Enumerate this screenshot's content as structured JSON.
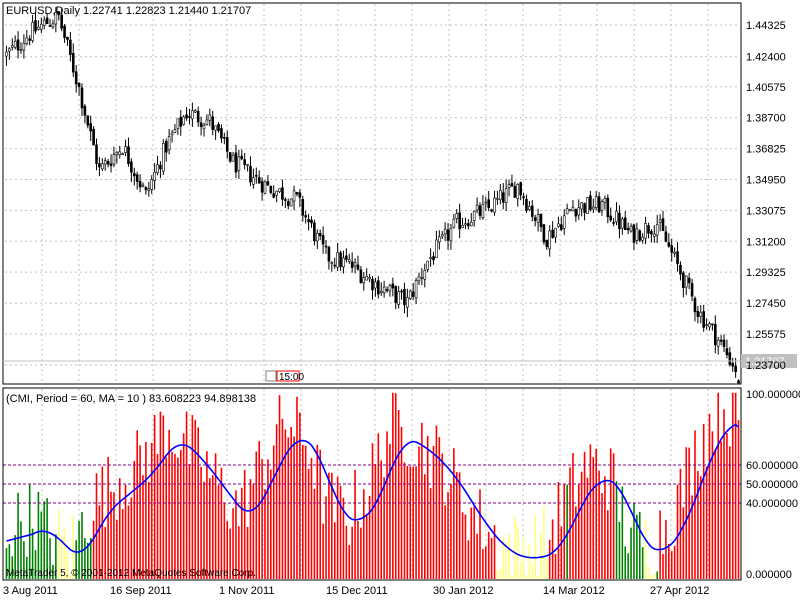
{
  "colors": {
    "background": "#ffffff",
    "frame": "#000000",
    "grid": "#c0c0c0",
    "candle": "#000000",
    "cmi_high": "#ff0000",
    "cmi_low": "#008000",
    "cmi_mid": "#ffff80",
    "ma_line": "#0000ff",
    "level_lines": "#800080",
    "bid_label_bg": "#c0c0c0",
    "event_marker": "#ff0000"
  },
  "price_panel": {
    "title": "EURUSD,Daily  1.22741 1.22823 1.21440 1.21707",
    "current_price_label": "1.21707",
    "event_marker_text": "15:00",
    "y_ticks": [
      "1.44325",
      "1.42400",
      "1.40575",
      "1.38700",
      "1.36825",
      "1.34950",
      "1.33075",
      "1.31200",
      "1.29325",
      "1.27450",
      "1.25575",
      "1.23700"
    ]
  },
  "indicator_panel": {
    "title": "(CMI, Period = 60, MA = 10 ) 83.608223 94.898138",
    "y_ticks": [
      "100.000000",
      "60.000000",
      "50.000000",
      "40.000000",
      "0.000000"
    ],
    "levels": [
      60,
      50,
      40
    ]
  },
  "x_axis": {
    "labels": [
      "3 Aug 2011",
      "16 Sep 2011",
      "1 Nov 2011",
      "15 Dec 2011",
      "30 Jan 2012",
      "14 Mar 2012",
      "27 Apr 2012"
    ]
  },
  "watermark": "MetaTrader 5, © 2001-2012 MetaQuotes Software Corp.",
  "chart_data": [
    {
      "type": "candlestick",
      "title": "EURUSD,Daily",
      "ylim": [
        1.226,
        1.456
      ],
      "x_labels": [
        "3 Aug 2011",
        "16 Sep 2011",
        "1 Nov 2011",
        "15 Dec 2011",
        "30 Jan 2012",
        "14 Mar 2012",
        "27 Apr 2012"
      ],
      "anchors": {
        "index": [
          0,
          8,
          14,
          18,
          25,
          32,
          40,
          48,
          55,
          62,
          70,
          78,
          90,
          100,
          110,
          118,
          128,
          138,
          145,
          155,
          166,
          176,
          186,
          195,
          205,
          215,
          224,
          231,
          238,
          244,
          252
        ],
        "close": [
          1.425,
          1.438,
          1.445,
          1.448,
          1.405,
          1.355,
          1.37,
          1.34,
          1.37,
          1.39,
          1.385,
          1.36,
          1.345,
          1.337,
          1.303,
          1.298,
          1.285,
          1.275,
          1.3,
          1.323,
          1.332,
          1.346,
          1.314,
          1.333,
          1.334,
          1.316,
          1.323,
          1.297,
          1.27,
          1.255,
          1.232
        ]
      },
      "last": {
        "open": 1.22741,
        "high": 1.22823,
        "low": 1.2144,
        "close": 1.21707
      }
    },
    {
      "type": "bar",
      "title": "CMI, Period = 60, MA = 10",
      "ylim": [
        0,
        100
      ],
      "levels": [
        60,
        50,
        40
      ],
      "anchors": {
        "index": [
          0,
          10,
          15,
          22,
          30,
          38,
          46,
          55,
          65,
          72,
          80,
          88,
          96,
          104,
          110,
          118,
          125,
          132,
          140,
          150,
          160,
          168,
          176,
          186,
          192,
          200,
          208,
          214,
          222,
          230,
          238,
          246,
          252
        ],
        "value": [
          20,
          28,
          18,
          10,
          35,
          45,
          55,
          75,
          60,
          45,
          30,
          55,
          78,
          65,
          35,
          28,
          45,
          75,
          70,
          55,
          30,
          15,
          10,
          14,
          35,
          55,
          48,
          20,
          12,
          30,
          65,
          85,
          80
        ]
      },
      "last_values": {
        "cmi": 83.608223,
        "ma": 94.898138
      }
    }
  ]
}
